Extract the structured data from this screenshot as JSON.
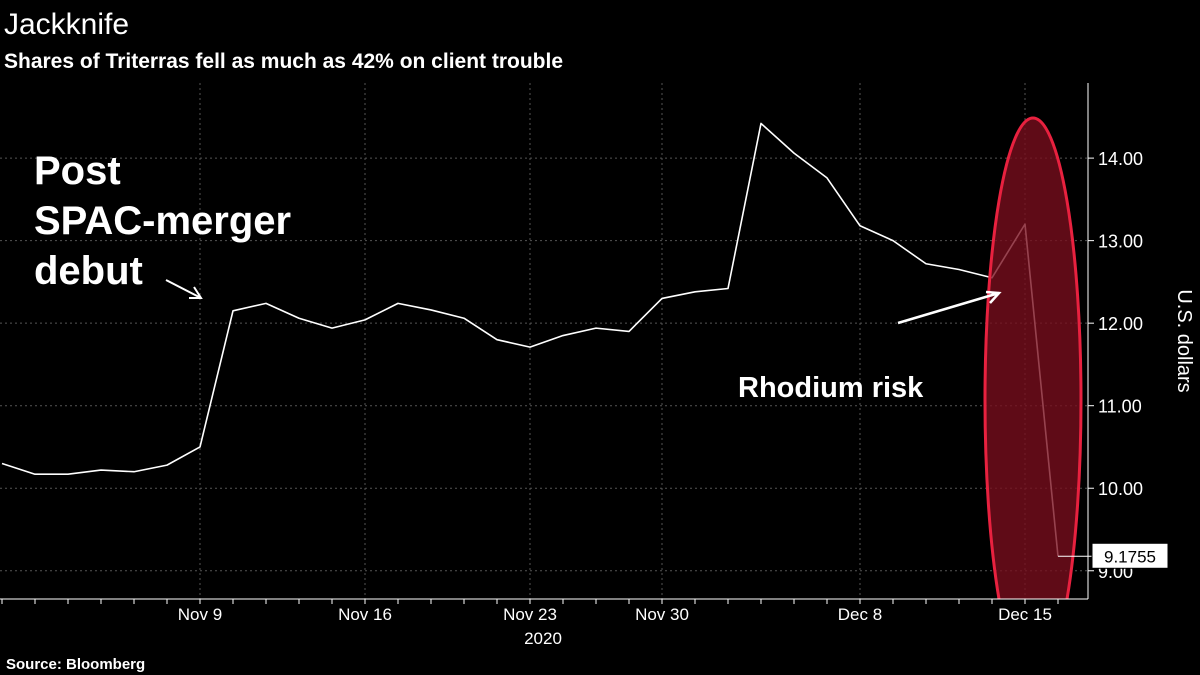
{
  "chart_data": {
    "type": "line",
    "title": "Jackknife",
    "subtitle": "Shares of Triterras fell as much as 42% on client trouble",
    "source": "Source: Bloomberg",
    "y_label": "U.S. dollars",
    "x_label": "2020",
    "annotations": [
      {
        "lines": [
          "Post",
          "SPAC-merger",
          "debut"
        ]
      },
      {
        "lines": [
          "Rhodium risk"
        ]
      }
    ],
    "categories": [
      null,
      null,
      null,
      null,
      null,
      null,
      "Nov 9",
      null,
      null,
      null,
      null,
      "Nov 16",
      null,
      null,
      null,
      null,
      "Nov 23",
      null,
      null,
      null,
      "Nov 30",
      null,
      null,
      null,
      null,
      null,
      "Dec 8",
      null,
      null,
      null,
      null,
      "Dec 15",
      null
    ],
    "values": [
      10.3,
      10.17,
      10.17,
      10.22,
      10.2,
      10.28,
      10.5,
      12.15,
      12.24,
      12.06,
      11.94,
      12.04,
      12.24,
      12.16,
      12.06,
      11.8,
      11.71,
      11.85,
      11.94,
      11.9,
      12.3,
      12.38,
      12.42,
      14.42,
      14.06,
      13.76,
      13.18,
      13.0,
      12.72,
      12.65,
      12.55,
      13.2,
      9.1755
    ],
    "color": "#ffffff",
    "ylim": [
      8.67,
      14.91
    ],
    "yticks": [
      {
        "value": 9,
        "label": "9.00"
      },
      {
        "value": 10,
        "label": "10.00"
      },
      {
        "value": 11,
        "label": "11.00"
      },
      {
        "value": 12,
        "label": "12.00"
      },
      {
        "value": 13,
        "label": "13.00"
      },
      {
        "value": 14,
        "label": "14.00"
      }
    ],
    "grid": true
  }
}
